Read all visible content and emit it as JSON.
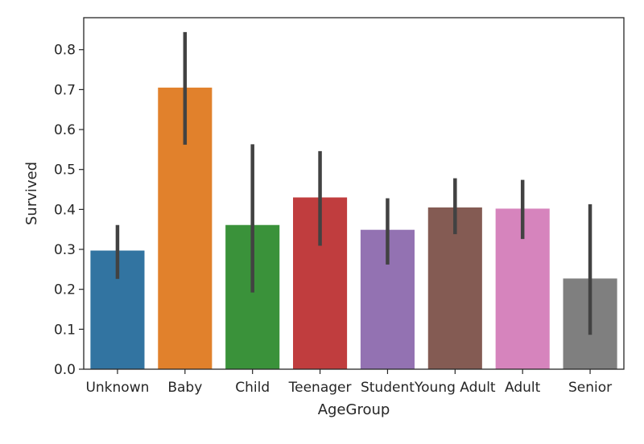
{
  "chart_data": {
    "type": "bar",
    "title": "",
    "xlabel": "AgeGroup",
    "ylabel": "Survived",
    "ylim": [
      0,
      0.88
    ],
    "yticks": [
      0.0,
      0.1,
      0.2,
      0.3,
      0.4,
      0.5,
      0.6,
      0.7,
      0.8
    ],
    "ytick_labels": [
      "0.0",
      "0.1",
      "0.2",
      "0.3",
      "0.4",
      "0.5",
      "0.6",
      "0.7",
      "0.8"
    ],
    "categories": [
      "Unknown",
      "Baby",
      "Child",
      "Teenager",
      "Student",
      "Young Adult",
      "Adult",
      "Senior"
    ],
    "values": [
      0.297,
      0.705,
      0.361,
      0.43,
      0.349,
      0.405,
      0.402,
      0.227
    ],
    "error_low": [
      0.226,
      0.562,
      0.192,
      0.309,
      0.262,
      0.338,
      0.326,
      0.086
    ],
    "error_high": [
      0.361,
      0.844,
      0.563,
      0.546,
      0.428,
      0.478,
      0.474,
      0.413
    ],
    "colors": [
      "#3274a1",
      "#e1812c",
      "#3a923a",
      "#c03d3e",
      "#9372b2",
      "#845b53",
      "#d684bd",
      "#7f7f7f"
    ],
    "error_color": "#424242",
    "grid": false,
    "legend": false
  }
}
